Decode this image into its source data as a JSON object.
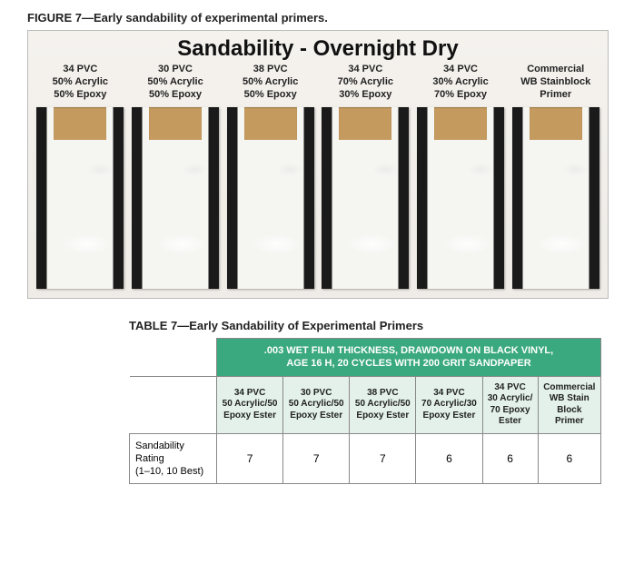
{
  "figure": {
    "caption": "FIGURE 7—Early sandability of experimental primers.",
    "title": "Sandability - Overnight Dry",
    "strips": [
      {
        "l1": "34 PVC",
        "l2": "50% Acrylic",
        "l3": "50% Epoxy"
      },
      {
        "l1": "30 PVC",
        "l2": "50% Acrylic",
        "l3": "50% Epoxy"
      },
      {
        "l1": "38 PVC",
        "l2": "50% Acrylic",
        "l3": "50% Epoxy"
      },
      {
        "l1": "34 PVC",
        "l2": "70% Acrylic",
        "l3": "30% Epoxy"
      },
      {
        "l1": "34 PVC",
        "l2": "30% Acrylic",
        "l3": "70% Epoxy"
      },
      {
        "l1": "Commercial",
        "l2": "WB Stainblock",
        "l3": "Primer"
      }
    ]
  },
  "table": {
    "caption": "TABLE 7—Early Sandability of Experimental Primers",
    "header_main_l1": ".003 WET FILM THICKNESS, DRAWDOWN ON BLACK VINYL,",
    "header_main_l2": "AGE 16 H, 20 CYCLES WITH 200 GRIT SANDPAPER",
    "columns": [
      {
        "l1": "34 PVC",
        "l2": "50 Acrylic/50",
        "l3": "Epoxy Ester"
      },
      {
        "l1": "30 PVC",
        "l2": "50 Acrylic/50",
        "l3": "Epoxy Ester"
      },
      {
        "l1": "38 PVC",
        "l2": "50 Acrylic/50",
        "l3": "Epoxy Ester"
      },
      {
        "l1": "34 PVC",
        "l2": "70 Acrylic/30",
        "l3": "Epoxy Ester"
      },
      {
        "l1": "34 PVC",
        "l2": "30 Acrylic/",
        "l3": "70 Epoxy",
        "l4": "Ester"
      },
      {
        "l1": "Commercial",
        "l2": "WB Stain",
        "l3": "Block",
        "l4": "Primer"
      }
    ],
    "row_label_l1": "Sandability",
    "row_label_l2": "Rating",
    "row_label_l3": "(1–10, 10 Best)",
    "values": [
      7,
      7,
      7,
      6,
      6,
      6
    ],
    "colors": {
      "header_bg": "#3aa97f",
      "subheader_bg": "#e3f1ea",
      "border": "#888888"
    }
  }
}
